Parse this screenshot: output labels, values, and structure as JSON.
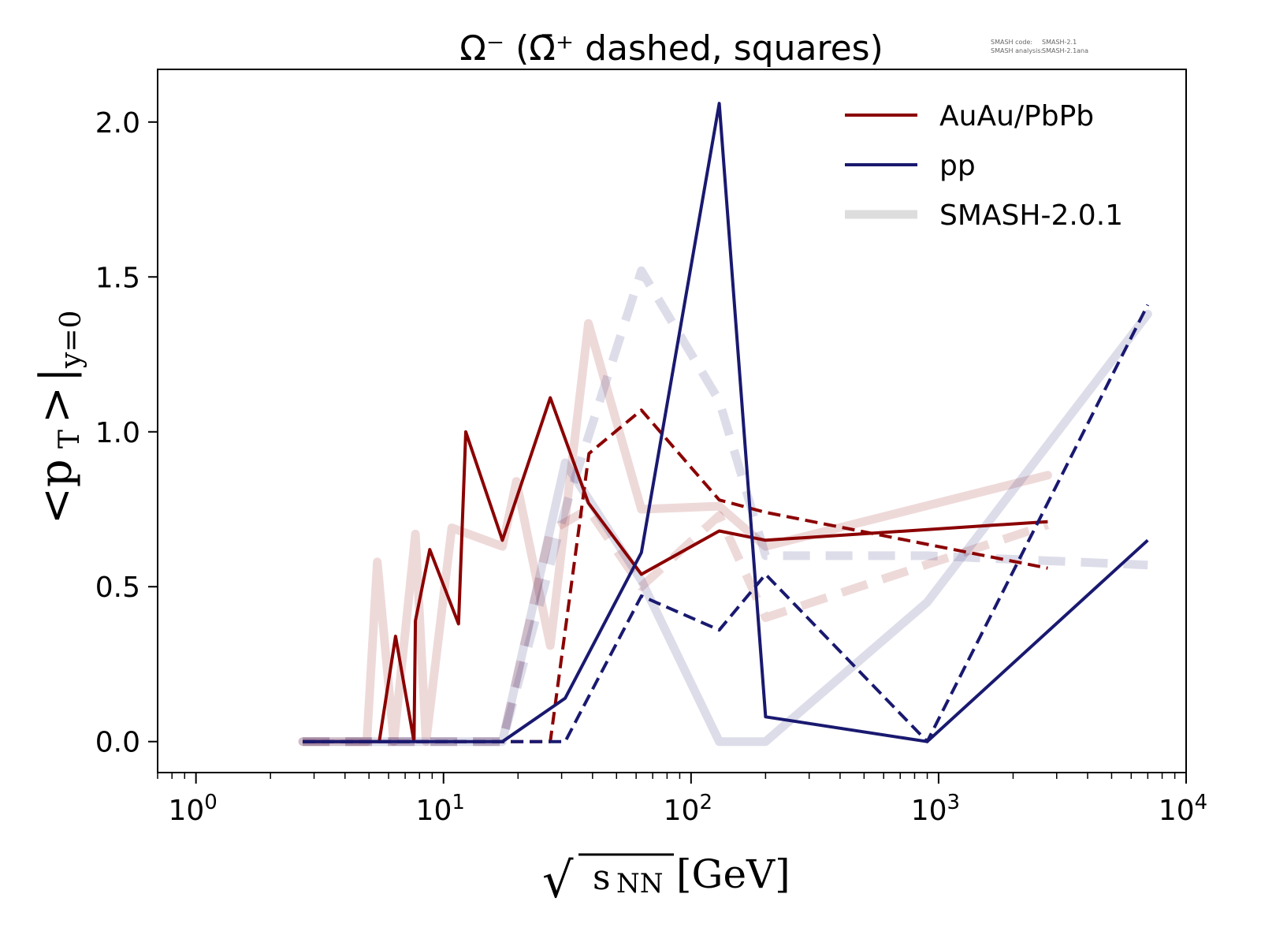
{
  "chart_data": {
    "type": "line",
    "title": "Ω⁻ (Ω̄⁺ dashed, squares)",
    "annotation": {
      "code_label": "SMASH code:",
      "code_value": "SMASH-2.1",
      "analysis_label": "SMASH analysis:",
      "analysis_value": "SMASH-2.1ana"
    },
    "xlabel": {
      "sqrt": "√",
      "var": "s",
      "sub": "NN",
      "unit": "[GeV]"
    },
    "ylabel": {
      "main": "<p",
      "sub_t": "T",
      "close": ">",
      "bar": "|",
      "sub_y": "y=0"
    },
    "xscale": "log",
    "xlim": [
      0.7,
      10000
    ],
    "ylim": [
      -0.1,
      2.17
    ],
    "xticks": [
      {
        "value": 1,
        "base": "10",
        "exp": "0"
      },
      {
        "value": 10,
        "base": "10",
        "exp": "1"
      },
      {
        "value": 100,
        "base": "10",
        "exp": "2"
      },
      {
        "value": 1000,
        "base": "10",
        "exp": "3"
      },
      {
        "value": 10000,
        "base": "10",
        "exp": "4"
      }
    ],
    "yticks": [
      {
        "value": 0.0,
        "label": "0.0"
      },
      {
        "value": 0.5,
        "label": "0.5"
      },
      {
        "value": 1.0,
        "label": "1.0"
      },
      {
        "value": 1.5,
        "label": "1.5"
      },
      {
        "value": 2.0,
        "label": "2.0"
      }
    ],
    "legend": {
      "placement": "top-right",
      "entries": [
        {
          "label": "AuAu/PbPb",
          "color": "#8b0000",
          "style": "thin"
        },
        {
          "label": "pp",
          "color": "#191970",
          "style": "thin"
        },
        {
          "label": "SMASH-2.0.1",
          "color": "#dddddd",
          "style": "thick"
        }
      ]
    },
    "series": [
      {
        "name": "SMASH AuAu/PbPb Ω⁻",
        "group": "smash",
        "color": "#8b0000",
        "opacity": 0.15,
        "dashed": false,
        "x": [
          2.7,
          4.9,
          5.4,
          6.3,
          7.7,
          8.5,
          10.8,
          17.3,
          19.7,
          27,
          38.5,
          63,
          130,
          200,
          2760
        ],
        "y": [
          0,
          0,
          0.58,
          0,
          0.67,
          0,
          0.69,
          0.63,
          0.84,
          0.31,
          1.35,
          0.75,
          0.76,
          0.63,
          0.86
        ]
      },
      {
        "name": "SMASH AuAu/PbPb Ω̄⁺",
        "group": "smash",
        "color": "#8b0000",
        "opacity": 0.15,
        "dashed": true,
        "x": [
          2.7,
          17.3,
          27,
          38.5,
          63,
          130,
          200,
          2760
        ],
        "y": [
          0,
          0,
          0.68,
          0.75,
          0.5,
          0.73,
          0.4,
          0.7
        ]
      },
      {
        "name": "SMASH pp Ω⁻",
        "group": "smash",
        "color": "#191970",
        "opacity": 0.15,
        "dashed": false,
        "x": [
          2.7,
          17.3,
          31,
          63,
          130,
          200,
          900,
          7000
        ],
        "y": [
          0,
          0,
          0.9,
          0.52,
          0,
          0,
          0.45,
          1.38
        ]
      },
      {
        "name": "SMASH pp Ω̄⁺",
        "group": "smash",
        "color": "#191970",
        "opacity": 0.15,
        "dashed": true,
        "x": [
          2.7,
          17.3,
          31,
          63,
          130,
          200,
          900,
          7000
        ],
        "y": [
          0,
          0,
          0.75,
          1.52,
          1.1,
          0.6,
          0.6,
          0.57
        ]
      },
      {
        "name": "AuAu/PbPb Ω⁻",
        "group": "data",
        "color": "#8b0000",
        "opacity": 1,
        "dashed": false,
        "x": [
          2.7,
          5.5,
          6.4,
          7.6,
          7.7,
          8.8,
          11.5,
          12.3,
          17.3,
          27,
          38.5,
          63,
          130,
          200,
          2760
        ],
        "y": [
          0,
          0,
          0.34,
          0,
          0.39,
          0.62,
          0.38,
          1.0,
          0.65,
          1.11,
          0.77,
          0.54,
          0.68,
          0.65,
          0.71
        ]
      },
      {
        "name": "AuAu/PbPb Ω̄⁺",
        "group": "data",
        "color": "#8b0000",
        "opacity": 1,
        "dashed": true,
        "x": [
          2.7,
          27,
          38.7,
          63,
          130,
          200,
          2760
        ],
        "y": [
          0,
          0,
          0.93,
          1.07,
          0.78,
          0.74,
          0.56
        ]
      },
      {
        "name": "pp Ω⁻",
        "group": "data",
        "color": "#191970",
        "opacity": 1,
        "dashed": false,
        "x": [
          2.7,
          17.3,
          31,
          63,
          130,
          200,
          900,
          7000
        ],
        "y": [
          0,
          0,
          0.14,
          0.61,
          2.06,
          0.08,
          0,
          0.65
        ]
      },
      {
        "name": "pp Ω̄⁺",
        "group": "data",
        "color": "#191970",
        "opacity": 1,
        "dashed": true,
        "x": [
          2.7,
          31,
          63,
          130,
          200,
          900,
          7000
        ],
        "y": [
          0,
          0,
          0.47,
          0.36,
          0.54,
          0,
          1.41
        ]
      }
    ]
  }
}
